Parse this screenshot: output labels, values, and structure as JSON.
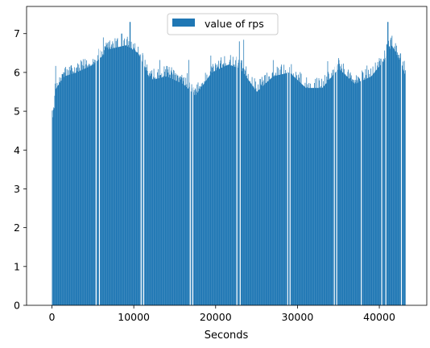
{
  "chart_data": {
    "type": "bar",
    "title": "",
    "xlabel": "Seconds",
    "ylabel": "",
    "xlim": [
      -3100,
      45800
    ],
    "ylim": [
      0,
      7.7
    ],
    "x_ticks": [
      0,
      10000,
      20000,
      30000,
      40000
    ],
    "y_ticks": [
      0,
      1,
      2,
      3,
      4,
      5,
      6,
      7
    ],
    "grid": false,
    "legend_position": "top-center",
    "bar_color": "#1f77b4",
    "bin_width_seconds": 60,
    "x_range": [
      0,
      43200
    ],
    "gap_x_positions": [
      5400,
      5800,
      10900,
      11200,
      16900,
      17200,
      22600,
      23000,
      28800,
      29100,
      34500,
      34800,
      37800,
      40300,
      40800,
      42700
    ],
    "series": [
      {
        "name": "value of rps",
        "trend": {
          "x": [
            0,
            500,
            1500,
            3000,
            5000,
            7000,
            9000,
            10500,
            12000,
            14000,
            16000,
            17500,
            19500,
            21500,
            23000,
            25000,
            27000,
            29000,
            31000,
            33000,
            35000,
            37000,
            39000,
            40500,
            41500,
            42500,
            43200
          ],
          "y": [
            5.1,
            5.6,
            5.9,
            6.0,
            6.2,
            6.6,
            6.7,
            6.5,
            5.8,
            5.9,
            5.7,
            5.4,
            6.0,
            6.2,
            6.1,
            5.5,
            5.9,
            6.0,
            5.6,
            5.6,
            6.1,
            5.7,
            5.9,
            6.3,
            6.7,
            6.3,
            5.9
          ]
        },
        "peaks": [
          {
            "x": 8500,
            "y": 7.0
          },
          {
            "x": 9500,
            "y": 7.3
          },
          {
            "x": 22900,
            "y": 6.8
          },
          {
            "x": 41000,
            "y": 7.3
          }
        ]
      }
    ]
  }
}
